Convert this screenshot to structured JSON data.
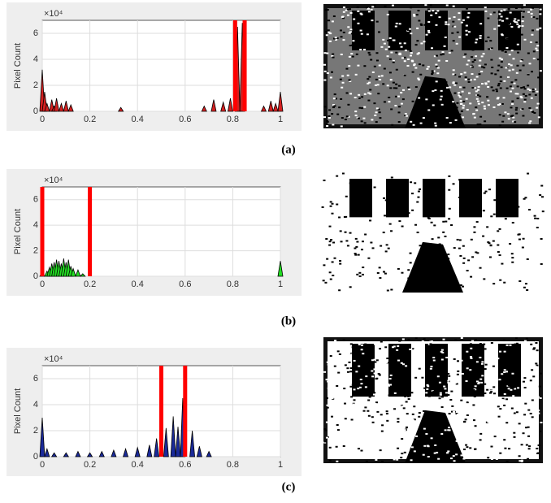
{
  "chart_data": [
    {
      "type": "bar",
      "caption": "(a)",
      "ylabel": "Pixel Count",
      "y_exponent": "×10⁴",
      "x": [
        0,
        0.01,
        0.02,
        0.04,
        0.05,
        0.06,
        0.08,
        0.1,
        0.12,
        0.33,
        0.68,
        0.72,
        0.76,
        0.79,
        0.82,
        0.84,
        0.93,
        0.96,
        0.98,
        1
      ],
      "values": [
        3.2,
        1.5,
        0.6,
        0.9,
        0.4,
        1.0,
        0.6,
        0.8,
        0.5,
        0.3,
        0.4,
        0.9,
        0.7,
        1.0,
        6.5,
        6.8,
        0.4,
        0.8,
        0.6,
        1.5
      ],
      "color": "#000000",
      "fill_color": "#d42020",
      "thresholds": [
        0.81,
        0.85
      ],
      "threshold_color": "#ff0000",
      "xlim": [
        0,
        1
      ],
      "ylim": [
        0,
        7
      ],
      "xticks": [
        0,
        0.2,
        0.4,
        0.6,
        0.8,
        1
      ],
      "yticks": [
        0,
        2,
        4,
        6
      ],
      "grid": true
    },
    {
      "type": "bar",
      "caption": "(b)",
      "ylabel": "Pixel Count",
      "y_exponent": "×10⁴",
      "x": [
        0,
        0.02,
        0.03,
        0.04,
        0.05,
        0.06,
        0.07,
        0.08,
        0.09,
        0.1,
        0.11,
        0.12,
        0.13,
        0.15,
        0.17,
        1
      ],
      "values": [
        0.3,
        0.4,
        0.7,
        1.0,
        1.1,
        1.3,
        1.2,
        1.0,
        1.4,
        1.1,
        1.3,
        0.8,
        0.6,
        0.5,
        0.2,
        1.2
      ],
      "color": "#000000",
      "fill_color": "#22dd22",
      "thresholds": [
        0,
        0.2
      ],
      "threshold_color": "#ff0000",
      "xlim": [
        0,
        1
      ],
      "ylim": [
        0,
        7
      ],
      "xticks": [
        0,
        0.2,
        0.4,
        0.6,
        0.8,
        1
      ],
      "yticks": [
        0,
        2,
        4,
        6
      ],
      "grid": true
    },
    {
      "type": "bar",
      "caption": "(c)",
      "ylabel": "Pixel Count",
      "y_exponent": "×10⁴",
      "x": [
        0,
        0.02,
        0.05,
        0.1,
        0.15,
        0.2,
        0.25,
        0.3,
        0.35,
        0.4,
        0.45,
        0.48,
        0.52,
        0.55,
        0.57,
        0.59,
        0.63,
        0.66,
        0.7
      ],
      "values": [
        3.0,
        0.6,
        0.3,
        0.3,
        0.4,
        0.3,
        0.4,
        0.5,
        0.6,
        0.7,
        0.9,
        1.4,
        2.2,
        3.1,
        2.3,
        4.5,
        2.0,
        0.8,
        0.4
      ],
      "color": "#000000",
      "fill_color": "#1a2a9a",
      "thresholds": [
        0.5,
        0.6
      ],
      "threshold_color": "#ff0000",
      "xlim": [
        0,
        1
      ],
      "ylim": [
        0,
        7
      ],
      "xticks": [
        0,
        0.2,
        0.4,
        0.6,
        0.8,
        1
      ],
      "yticks": [
        0,
        2,
        4,
        6
      ],
      "grid": true
    }
  ]
}
